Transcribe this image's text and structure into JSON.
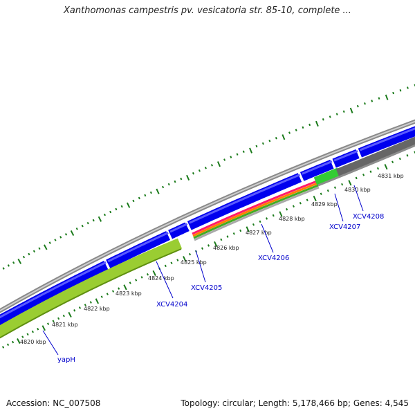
{
  "header": {
    "title": "Xanthomonas campestris pv. vesicatoria str. 85-10, complete ..."
  },
  "footer": {
    "accession": "Accession: NC_007508",
    "summary": "Topology: circular; Length: 5,178,466 bp; Genes: 4,545"
  },
  "colors": {
    "forward_cds": "#0000ee",
    "reverse_track": "#9acd32",
    "backbone": "#888888",
    "tick": "#1a7a1a",
    "label": "#0000cc"
  },
  "kbp_ticks": [
    "4820 kbp",
    "4821 kbp",
    "4822 kbp",
    "4823 kbp",
    "4824 kbp",
    "4825 kbp",
    "4826 kbp",
    "4827 kbp",
    "4828 kbp",
    "4829 kbp",
    "4830 kbp",
    "4831 kbp"
  ],
  "genes": [
    "yapH",
    "XCV4204",
    "XCV4205",
    "XCV4206",
    "XCV4207",
    "XCV4208"
  ]
}
